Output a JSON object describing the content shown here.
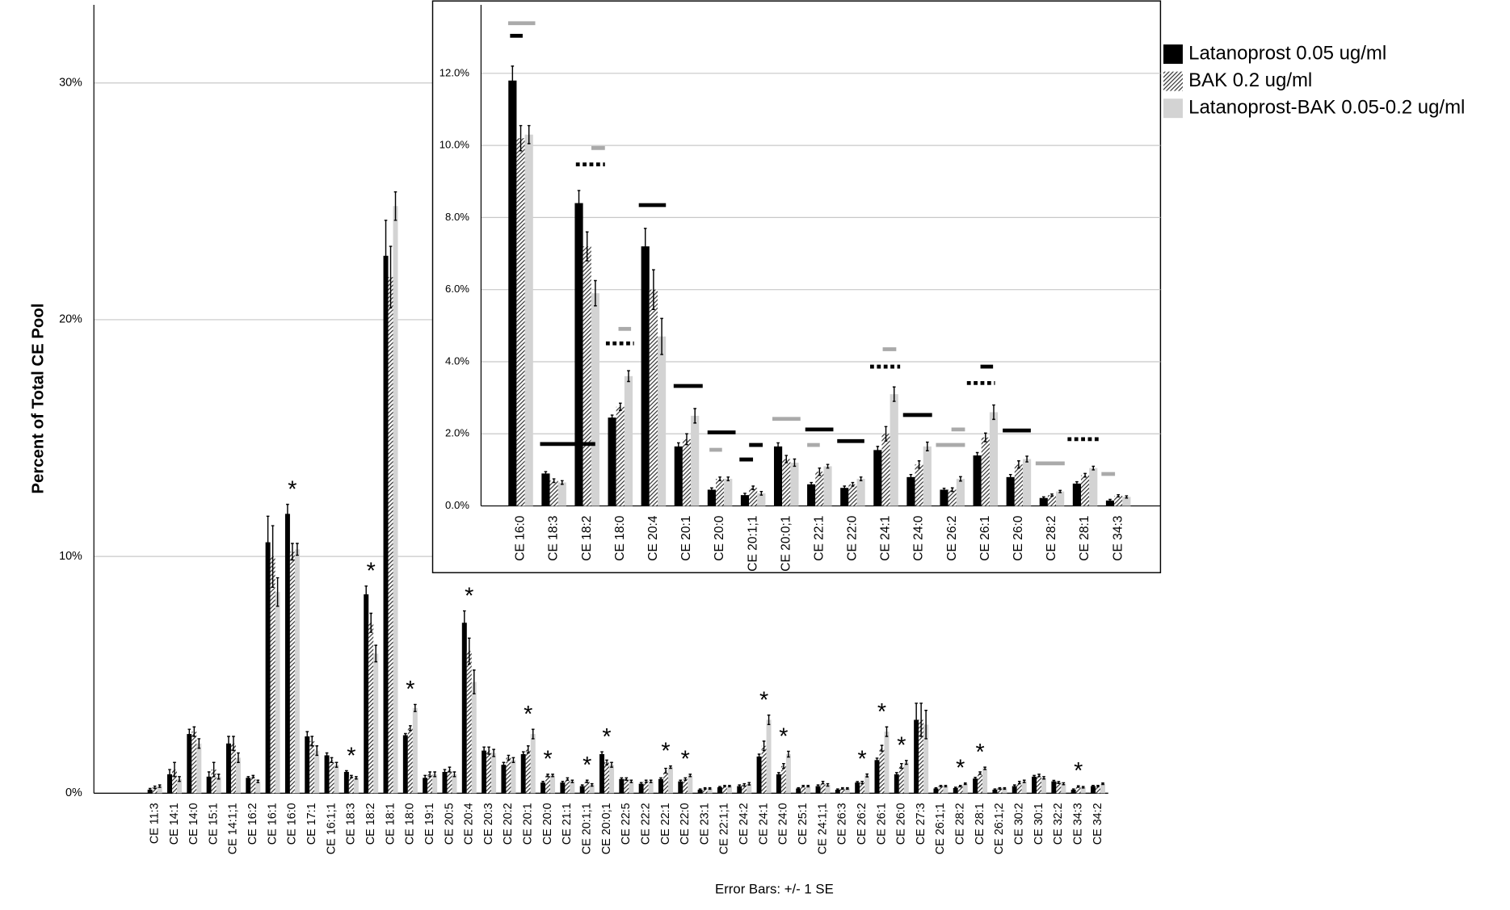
{
  "chart_data": [
    {
      "type": "bar",
      "y_label": "Percent of Total CE Pool",
      "footnote": "Error Bars: +/- 1 SE",
      "categories": [
        "CE 11:3",
        "CE 14:1",
        "CE 14:0",
        "CE 15:1",
        "CE 14:1;1",
        "CE 16:2",
        "CE 16:1",
        "CE 16:0",
        "CE 17:1",
        "CE 16:1;1",
        "CE 18:3",
        "CE 18:2",
        "CE 18:1",
        "CE 18:0",
        "CE 19:1",
        "CE 20:5",
        "CE 20:4",
        "CE 20:3",
        "CE 20:2",
        "CE 20:1",
        "CE 20:0",
        "CE 21:1",
        "CE 20:1;1",
        "CE 20:0;1",
        "CE 22:5",
        "CE 22:2",
        "CE 22:1",
        "CE 22:0",
        "CE 23:1",
        "CE 22:1;1",
        "CE 24:2",
        "CE 24:1",
        "CE 24:0",
        "CE 25:1",
        "CE 24:1;1",
        "CE 26:3",
        "CE 26:2",
        "CE 26:1",
        "CE 26:0",
        "CE 27:3",
        "CE 26:1;1",
        "CE 28:2",
        "CE 28:1",
        "CE 26:1;2",
        "CE 30:2",
        "CE 30:1",
        "CE 32:2",
        "CE 34:3",
        "CE 34:2"
      ],
      "series": [
        {
          "name": "Latanoprost 0.05 ug/ml",
          "color": "#000000",
          "values": [
            0.15,
            0.8,
            2.5,
            0.7,
            2.1,
            0.65,
            10.6,
            11.8,
            2.4,
            1.6,
            0.9,
            8.4,
            22.7,
            2.45,
            0.65,
            0.9,
            7.2,
            1.8,
            1.2,
            1.65,
            0.45,
            0.45,
            0.3,
            1.65,
            0.6,
            0.4,
            0.6,
            0.5,
            0.15,
            0.25,
            0.3,
            1.55,
            0.8,
            0.2,
            0.3,
            0.15,
            0.45,
            1.4,
            0.8,
            3.1,
            0.2,
            0.22,
            0.62,
            0.15,
            0.3,
            0.7,
            0.5,
            0.15,
            0.3
          ],
          "errors": [
            0.05,
            0.2,
            0.2,
            0.2,
            0.3,
            0.05,
            1.1,
            0.4,
            0.2,
            0.1,
            0.05,
            0.35,
            1.5,
            0.07,
            0.1,
            0.1,
            0.5,
            0.15,
            0.1,
            0.1,
            0.05,
            0.05,
            0.05,
            0.1,
            0.05,
            0.05,
            0.05,
            0.05,
            0.03,
            0.03,
            0.05,
            0.1,
            0.07,
            0.03,
            0.05,
            0.03,
            0.04,
            0.08,
            0.07,
            0.7,
            0.03,
            0.03,
            0.05,
            0.03,
            0.05,
            0.05,
            0.04,
            0.03,
            0.03
          ]
        },
        {
          "name": "BAK 0.2 ug/ml",
          "color": "#333333",
          "hatch": true,
          "values": [
            0.25,
            1.0,
            2.6,
            1.0,
            2.1,
            0.7,
            10.0,
            10.2,
            2.2,
            1.4,
            0.7,
            7.2,
            21.8,
            2.75,
            0.8,
            1.0,
            6.0,
            1.8,
            1.5,
            1.85,
            0.75,
            0.6,
            0.5,
            1.3,
            0.6,
            0.5,
            0.95,
            0.6,
            0.2,
            0.3,
            0.35,
            2.0,
            1.15,
            0.3,
            0.45,
            0.2,
            0.45,
            1.9,
            1.15,
            3.1,
            0.3,
            0.3,
            0.85,
            0.2,
            0.45,
            0.75,
            0.45,
            0.28,
            0.3
          ],
          "errors": [
            0.05,
            0.3,
            0.2,
            0.3,
            0.3,
            0.05,
            1.3,
            0.35,
            0.2,
            0.1,
            0.05,
            0.4,
            1.3,
            0.1,
            0.1,
            0.1,
            0.55,
            0.15,
            0.1,
            0.15,
            0.05,
            0.05,
            0.05,
            0.1,
            0.05,
            0.05,
            0.1,
            0.05,
            0.03,
            0.03,
            0.05,
            0.2,
            0.1,
            0.03,
            0.05,
            0.03,
            0.05,
            0.12,
            0.1,
            0.7,
            0.03,
            0.03,
            0.05,
            0.03,
            0.05,
            0.05,
            0.04,
            0.03,
            0.03
          ]
        },
        {
          "name": "Latanoprost-BAK 0.05-0.2 ug/ml",
          "color": "#d3d3d3",
          "values": [
            0.3,
            0.6,
            2.1,
            0.7,
            1.5,
            0.5,
            8.5,
            10.3,
            1.8,
            1.2,
            0.65,
            5.9,
            24.8,
            3.6,
            0.8,
            0.8,
            4.7,
            1.7,
            1.4,
            2.5,
            0.75,
            0.5,
            0.35,
            1.2,
            0.5,
            0.5,
            1.1,
            0.75,
            0.2,
            0.3,
            0.4,
            3.1,
            1.65,
            0.3,
            0.35,
            0.2,
            0.75,
            2.6,
            1.3,
            2.9,
            0.3,
            0.4,
            1.05,
            0.2,
            0.5,
            0.65,
            0.4,
            0.25,
            0.4
          ],
          "errors": [
            0.05,
            0.1,
            0.2,
            0.1,
            0.2,
            0.05,
            0.6,
            0.25,
            0.2,
            0.1,
            0.05,
            0.35,
            0.6,
            0.15,
            0.1,
            0.1,
            0.5,
            0.15,
            0.1,
            0.2,
            0.05,
            0.05,
            0.05,
            0.1,
            0.05,
            0.05,
            0.05,
            0.05,
            0.03,
            0.03,
            0.05,
            0.2,
            0.12,
            0.03,
            0.05,
            0.03,
            0.06,
            0.2,
            0.08,
            0.6,
            0.03,
            0.03,
            0.05,
            0.03,
            0.05,
            0.05,
            0.04,
            0.03,
            0.03
          ]
        }
      ],
      "annotations": [
        {
          "text": "*",
          "category": "CE 16:0"
        },
        {
          "text": "*",
          "category": "CE 18:3"
        },
        {
          "text": "*",
          "category": "CE 18:2"
        },
        {
          "text": "*",
          "category": "CE 18:0"
        },
        {
          "text": "*",
          "category": "CE 20:4"
        },
        {
          "text": "*",
          "category": "CE 20:1"
        },
        {
          "text": "*",
          "category": "CE 20:0"
        },
        {
          "text": "*",
          "category": "CE 20:1;1"
        },
        {
          "text": "*",
          "category": "CE 20:0;1"
        },
        {
          "text": "*",
          "category": "CE 22:1"
        },
        {
          "text": "*",
          "category": "CE 22:0"
        },
        {
          "text": "*",
          "category": "CE 24:1"
        },
        {
          "text": "*",
          "category": "CE 24:0"
        },
        {
          "text": "*",
          "category": "CE 26:2"
        },
        {
          "text": "*",
          "category": "CE 26:1"
        },
        {
          "text": "*",
          "category": "CE 26:0"
        },
        {
          "text": "*",
          "category": "CE 28:2"
        },
        {
          "text": "*",
          "category": "CE 28:1"
        },
        {
          "text": "*",
          "category": "CE 34:3"
        }
      ],
      "ylim": [
        0,
        33.3
      ],
      "yticks": [
        {
          "value": 0,
          "label": "0%"
        },
        {
          "value": 10,
          "label": "10%"
        },
        {
          "value": 20,
          "label": "20%"
        },
        {
          "value": 30,
          "label": "30%"
        }
      ],
      "grid": true,
      "legend": "top-right"
    },
    {
      "type": "bar",
      "categories": [
        "CE 16:0",
        "CE 18:3",
        "CE 18:2",
        "CE 18:0",
        "CE 20:4",
        "CE 20:1",
        "CE 20:0",
        "CE 20:1;1",
        "CE 20:0;1",
        "CE 22:1",
        "CE 22:0",
        "CE 24:1",
        "CE 24:0",
        "CE 26:2",
        "CE 26:1",
        "CE 26:0",
        "CE 28:2",
        "CE 28:1",
        "CE 34:3"
      ],
      "series": [
        {
          "color": "#000000",
          "values": [
            11.8,
            0.9,
            8.4,
            2.45,
            7.2,
            1.65,
            0.45,
            0.3,
            1.65,
            0.6,
            0.5,
            1.55,
            0.8,
            0.45,
            1.4,
            0.8,
            0.22,
            0.62,
            0.15
          ],
          "errors": [
            0.4,
            0.05,
            0.35,
            0.07,
            0.5,
            0.1,
            0.05,
            0.05,
            0.1,
            0.05,
            0.05,
            0.1,
            0.07,
            0.04,
            0.08,
            0.07,
            0.03,
            0.05,
            0.03
          ]
        },
        {
          "color": "#333333",
          "hatch": true,
          "values": [
            10.2,
            0.7,
            7.2,
            2.75,
            6.0,
            1.85,
            0.75,
            0.5,
            1.3,
            0.95,
            0.6,
            2.0,
            1.15,
            0.45,
            1.9,
            1.15,
            0.3,
            0.85,
            0.28
          ],
          "errors": [
            0.35,
            0.05,
            0.4,
            0.1,
            0.55,
            0.15,
            0.05,
            0.05,
            0.1,
            0.1,
            0.05,
            0.2,
            0.1,
            0.05,
            0.12,
            0.1,
            0.03,
            0.05,
            0.03
          ]
        },
        {
          "color": "#d3d3d3",
          "values": [
            10.3,
            0.65,
            5.9,
            3.6,
            4.7,
            2.5,
            0.75,
            0.35,
            1.2,
            1.1,
            0.75,
            3.1,
            1.65,
            0.75,
            2.6,
            1.3,
            0.4,
            1.05,
            0.25
          ],
          "errors": [
            0.25,
            0.05,
            0.35,
            0.15,
            0.5,
            0.2,
            0.05,
            0.05,
            0.1,
            0.05,
            0.05,
            0.2,
            0.12,
            0.06,
            0.2,
            0.08,
            0.03,
            0.05,
            0.03
          ]
        }
      ],
      "ylim": [
        0,
        13.9
      ],
      "yticks": [
        {
          "value": 0,
          "label": "0.0%"
        },
        {
          "value": 2,
          "label": "2.0%"
        },
        {
          "value": 4,
          "label": "4.0%"
        },
        {
          "value": 6,
          "label": "6.0%"
        },
        {
          "value": 8,
          "label": "8.0%"
        },
        {
          "value": 10,
          "label": "10.0%"
        },
        {
          "value": 12,
          "label": "12.0%"
        }
      ],
      "grid": true
    }
  ]
}
